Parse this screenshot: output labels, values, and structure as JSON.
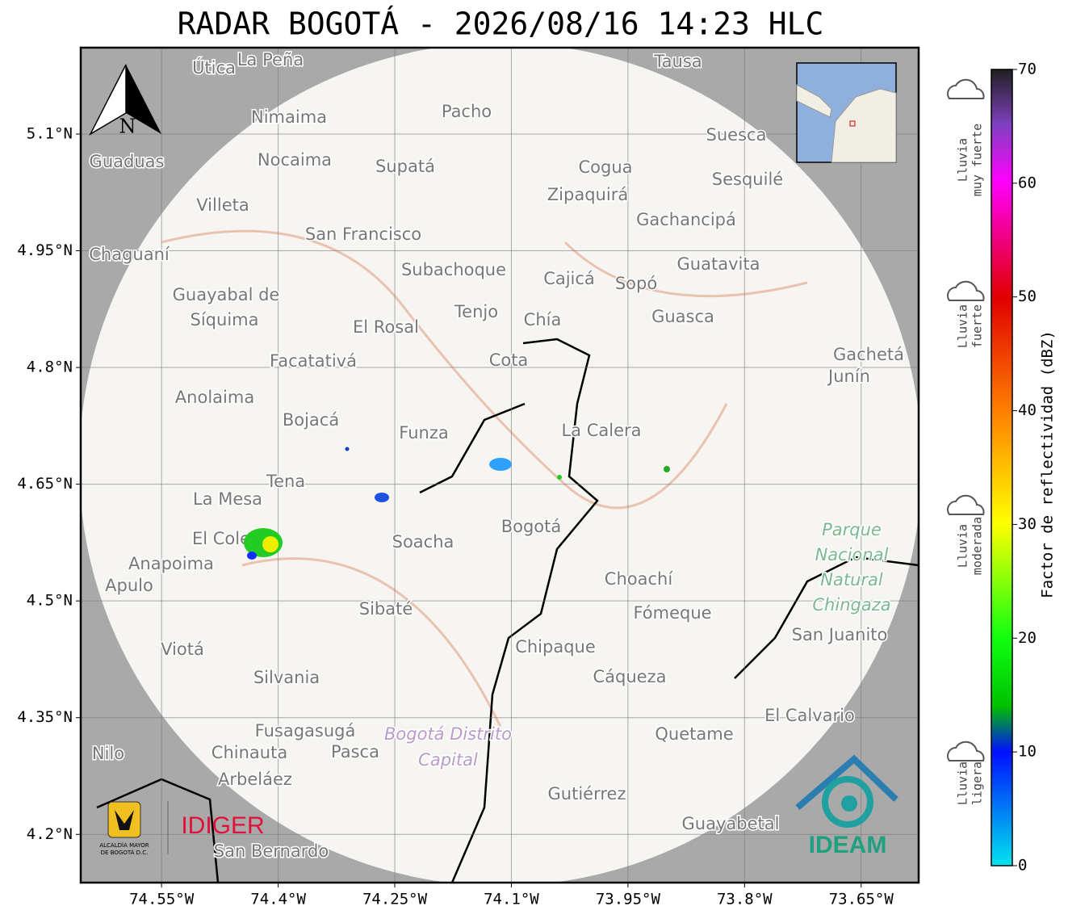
{
  "title": "RADAR BOGOTÁ - 2026/08/16 14:23 HLC",
  "map": {
    "xlim": [
      -74.654,
      -73.576
    ],
    "ylim": [
      4.138,
      5.211
    ],
    "xticks": [
      {
        "value": -74.55,
        "label": "74.55°W"
      },
      {
        "value": -74.4,
        "label": "74.4°W"
      },
      {
        "value": -74.25,
        "label": "74.25°W"
      },
      {
        "value": -74.1,
        "label": "74.1°W"
      },
      {
        "value": -73.95,
        "label": "73.95°W"
      },
      {
        "value": -73.8,
        "label": "73.8°W"
      },
      {
        "value": -73.65,
        "label": "73.65°W"
      }
    ],
    "yticks": [
      {
        "value": 5.1,
        "label": "5.1°N"
      },
      {
        "value": 4.95,
        "label": "4.95°N"
      },
      {
        "value": 4.8,
        "label": "4.8°N"
      },
      {
        "value": 4.65,
        "label": "4.65°N"
      },
      {
        "value": 4.5,
        "label": "4.5°N"
      },
      {
        "value": 4.35,
        "label": "4.35°N"
      },
      {
        "value": 4.2,
        "label": "4.2°N"
      }
    ],
    "north": "N",
    "places": [
      "Útica",
      "La Peña",
      "Tausa",
      "Pacho",
      "Nimaima",
      "Suesca",
      "Guaduas",
      "Nocaima",
      "Supatá",
      "Cogua",
      "Sesquilé",
      "Zipaquirá",
      "Villeta",
      "Gachancipá",
      "San Francisco",
      "Chaguaní",
      "Subachoque",
      "Guatavita",
      "Cajicá",
      "Sopó",
      "Guayabal de",
      "Síquima",
      "Tenjo",
      "Chía",
      "Guasca",
      "El Rosal",
      "Facatativá",
      "Cota",
      "Gachetá",
      "Junín",
      "Anolaima",
      "Bojacá",
      "Funza",
      "La Calera",
      "Tena",
      "La Mesa",
      "Soacha",
      "Bogotá",
      "El Colegio",
      "Anapoima",
      "Apulo",
      "Choachí",
      "Sibaté",
      "Fómeque",
      "San Juanito",
      "Viotá",
      "Chipaque",
      "Silvania",
      "Cáqueza",
      "El Calvario",
      "Fusagasugá",
      "Quetame",
      "Nilo",
      "Chinauta",
      "Pasca",
      "Arbeláez",
      "Gutiérrez",
      "Guayabetal",
      "San Bernardo"
    ],
    "park": [
      "Parque",
      "Nacional",
      "Natural",
      "Chingaza"
    ],
    "district": [
      "Bogotá Distrito",
      "Capital"
    ]
  },
  "logos": {
    "alcaldia": [
      "ALCALDÍA MAYOR",
      "DE BOGOTÁ D.C."
    ],
    "idiger": "IDIGER",
    "ideam": "IDEAM"
  },
  "colorbar": {
    "label": "Factor de reflectividad (dBZ)",
    "lim": [
      0,
      70
    ],
    "ticks": [
      0,
      10,
      20,
      30,
      40,
      50,
      60,
      70
    ],
    "categories": [
      [
        "Lluvia",
        "muy fuerte"
      ],
      [
        "Lluvia",
        "fuerte"
      ],
      [
        "Lluvia",
        "moderada"
      ],
      [
        "Lluvia",
        "ligera"
      ]
    ]
  }
}
